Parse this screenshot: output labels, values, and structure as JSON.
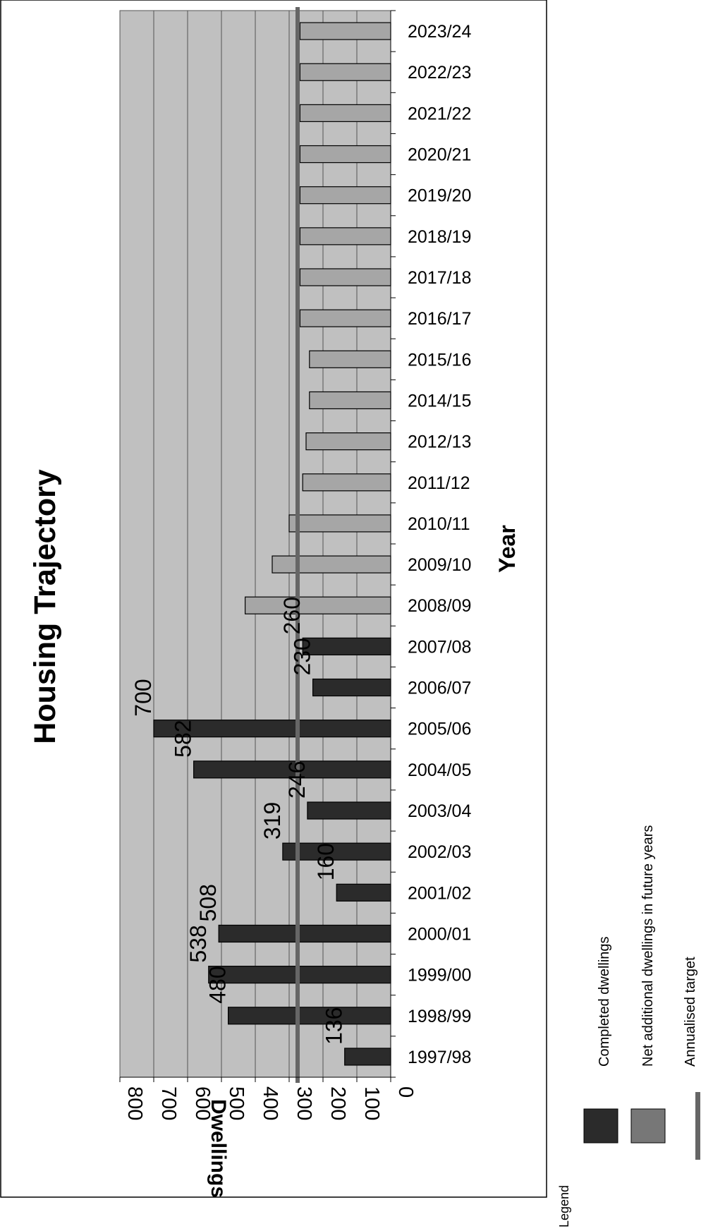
{
  "chart_data": {
    "type": "bar",
    "orientation": "horizontal",
    "title": "Housing Trajectory",
    "xlabel": "Year",
    "ylabel": "Dwellings",
    "ylim": [
      0,
      800
    ],
    "yticks": [
      0,
      100,
      200,
      300,
      400,
      500,
      600,
      700,
      800
    ],
    "grid": true,
    "categories": [
      "1997/98",
      "1998/99",
      "1999/00",
      "2000/01",
      "2001/02",
      "2002/03",
      "2003/04",
      "2004/05",
      "2005/06",
      "2006/07",
      "2007/08",
      "2008/09",
      "2009/10",
      "2010/11",
      "2011/12",
      "2012/13",
      "2014/15",
      "2015/16",
      "2016/17",
      "2017/18",
      "2018/19",
      "2019/20",
      "2020/21",
      "2021/22",
      "2022/23",
      "2023/24"
    ],
    "series": [
      {
        "name": "Completed dwellings",
        "color": "#2b2b2b",
        "values": [
          136,
          480,
          538,
          508,
          160,
          319,
          246,
          582,
          700,
          230,
          260,
          null,
          null,
          null,
          null,
          null,
          null,
          null,
          null,
          null,
          null,
          null,
          null,
          null,
          null,
          null
        ],
        "data_labels": [
          "136",
          "480",
          "538",
          "508",
          "160",
          "319",
          "246",
          "582",
          "700",
          "230",
          "260"
        ]
      },
      {
        "name": "Net additional dwellings in future years",
        "color": "#a6a6a6",
        "values": [
          null,
          null,
          null,
          null,
          null,
          null,
          null,
          null,
          null,
          null,
          null,
          430,
          350,
          300,
          260,
          250,
          240,
          240,
          268,
          268,
          268,
          268,
          268,
          268,
          268,
          268
        ]
      }
    ],
    "target": {
      "name": "Annualised target",
      "value": 275,
      "color": "#666666"
    },
    "legend": {
      "title": "Legend",
      "placement": "bottom",
      "entries": [
        "Completed dwellings",
        "Net additional dwellings in future years",
        "Annualised target"
      ]
    },
    "colors": {
      "plot_background": "#c0c0c0",
      "gridline": "#555555",
      "legend_future": "#777777"
    }
  }
}
